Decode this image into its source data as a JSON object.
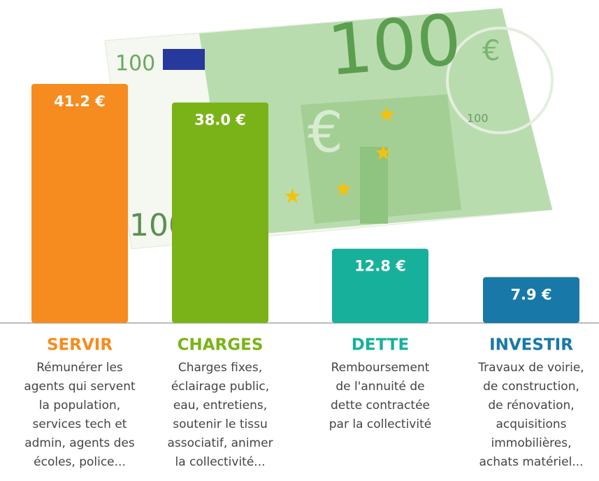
{
  "banknote": {
    "denomination": "100",
    "symbol": "€"
  },
  "chart_data": {
    "type": "bar",
    "categories": [
      "SERVIR",
      "CHARGES",
      "DETTE",
      "INVESTIR"
    ],
    "values": [
      41.2,
      38.0,
      12.8,
      7.9
    ],
    "value_labels": [
      "41.2 €",
      "38.0 €",
      "12.8 €",
      "7.9 €"
    ],
    "colors": [
      "#f68b1f",
      "#7ab317",
      "#17b09b",
      "#1878a8"
    ],
    "descriptions": [
      [
        "Rémunérer les",
        "agents qui servent",
        "la population,",
        "services tech et",
        "admin, agents des",
        "écoles, police..."
      ],
      [
        "Charges fixes,",
        "éclairage public,",
        "eau, entretiens,",
        "soutenir le tissu",
        "associatif, animer",
        "la collectivité..."
      ],
      [
        "Remboursement",
        "de l'annuité de",
        "dette contractée",
        "par la collectivité"
      ],
      [
        "Travaux de voirie,",
        "de construction,",
        "de rénovation,",
        "acquisitions",
        "immobilières,",
        "achats matériel..."
      ]
    ]
  }
}
